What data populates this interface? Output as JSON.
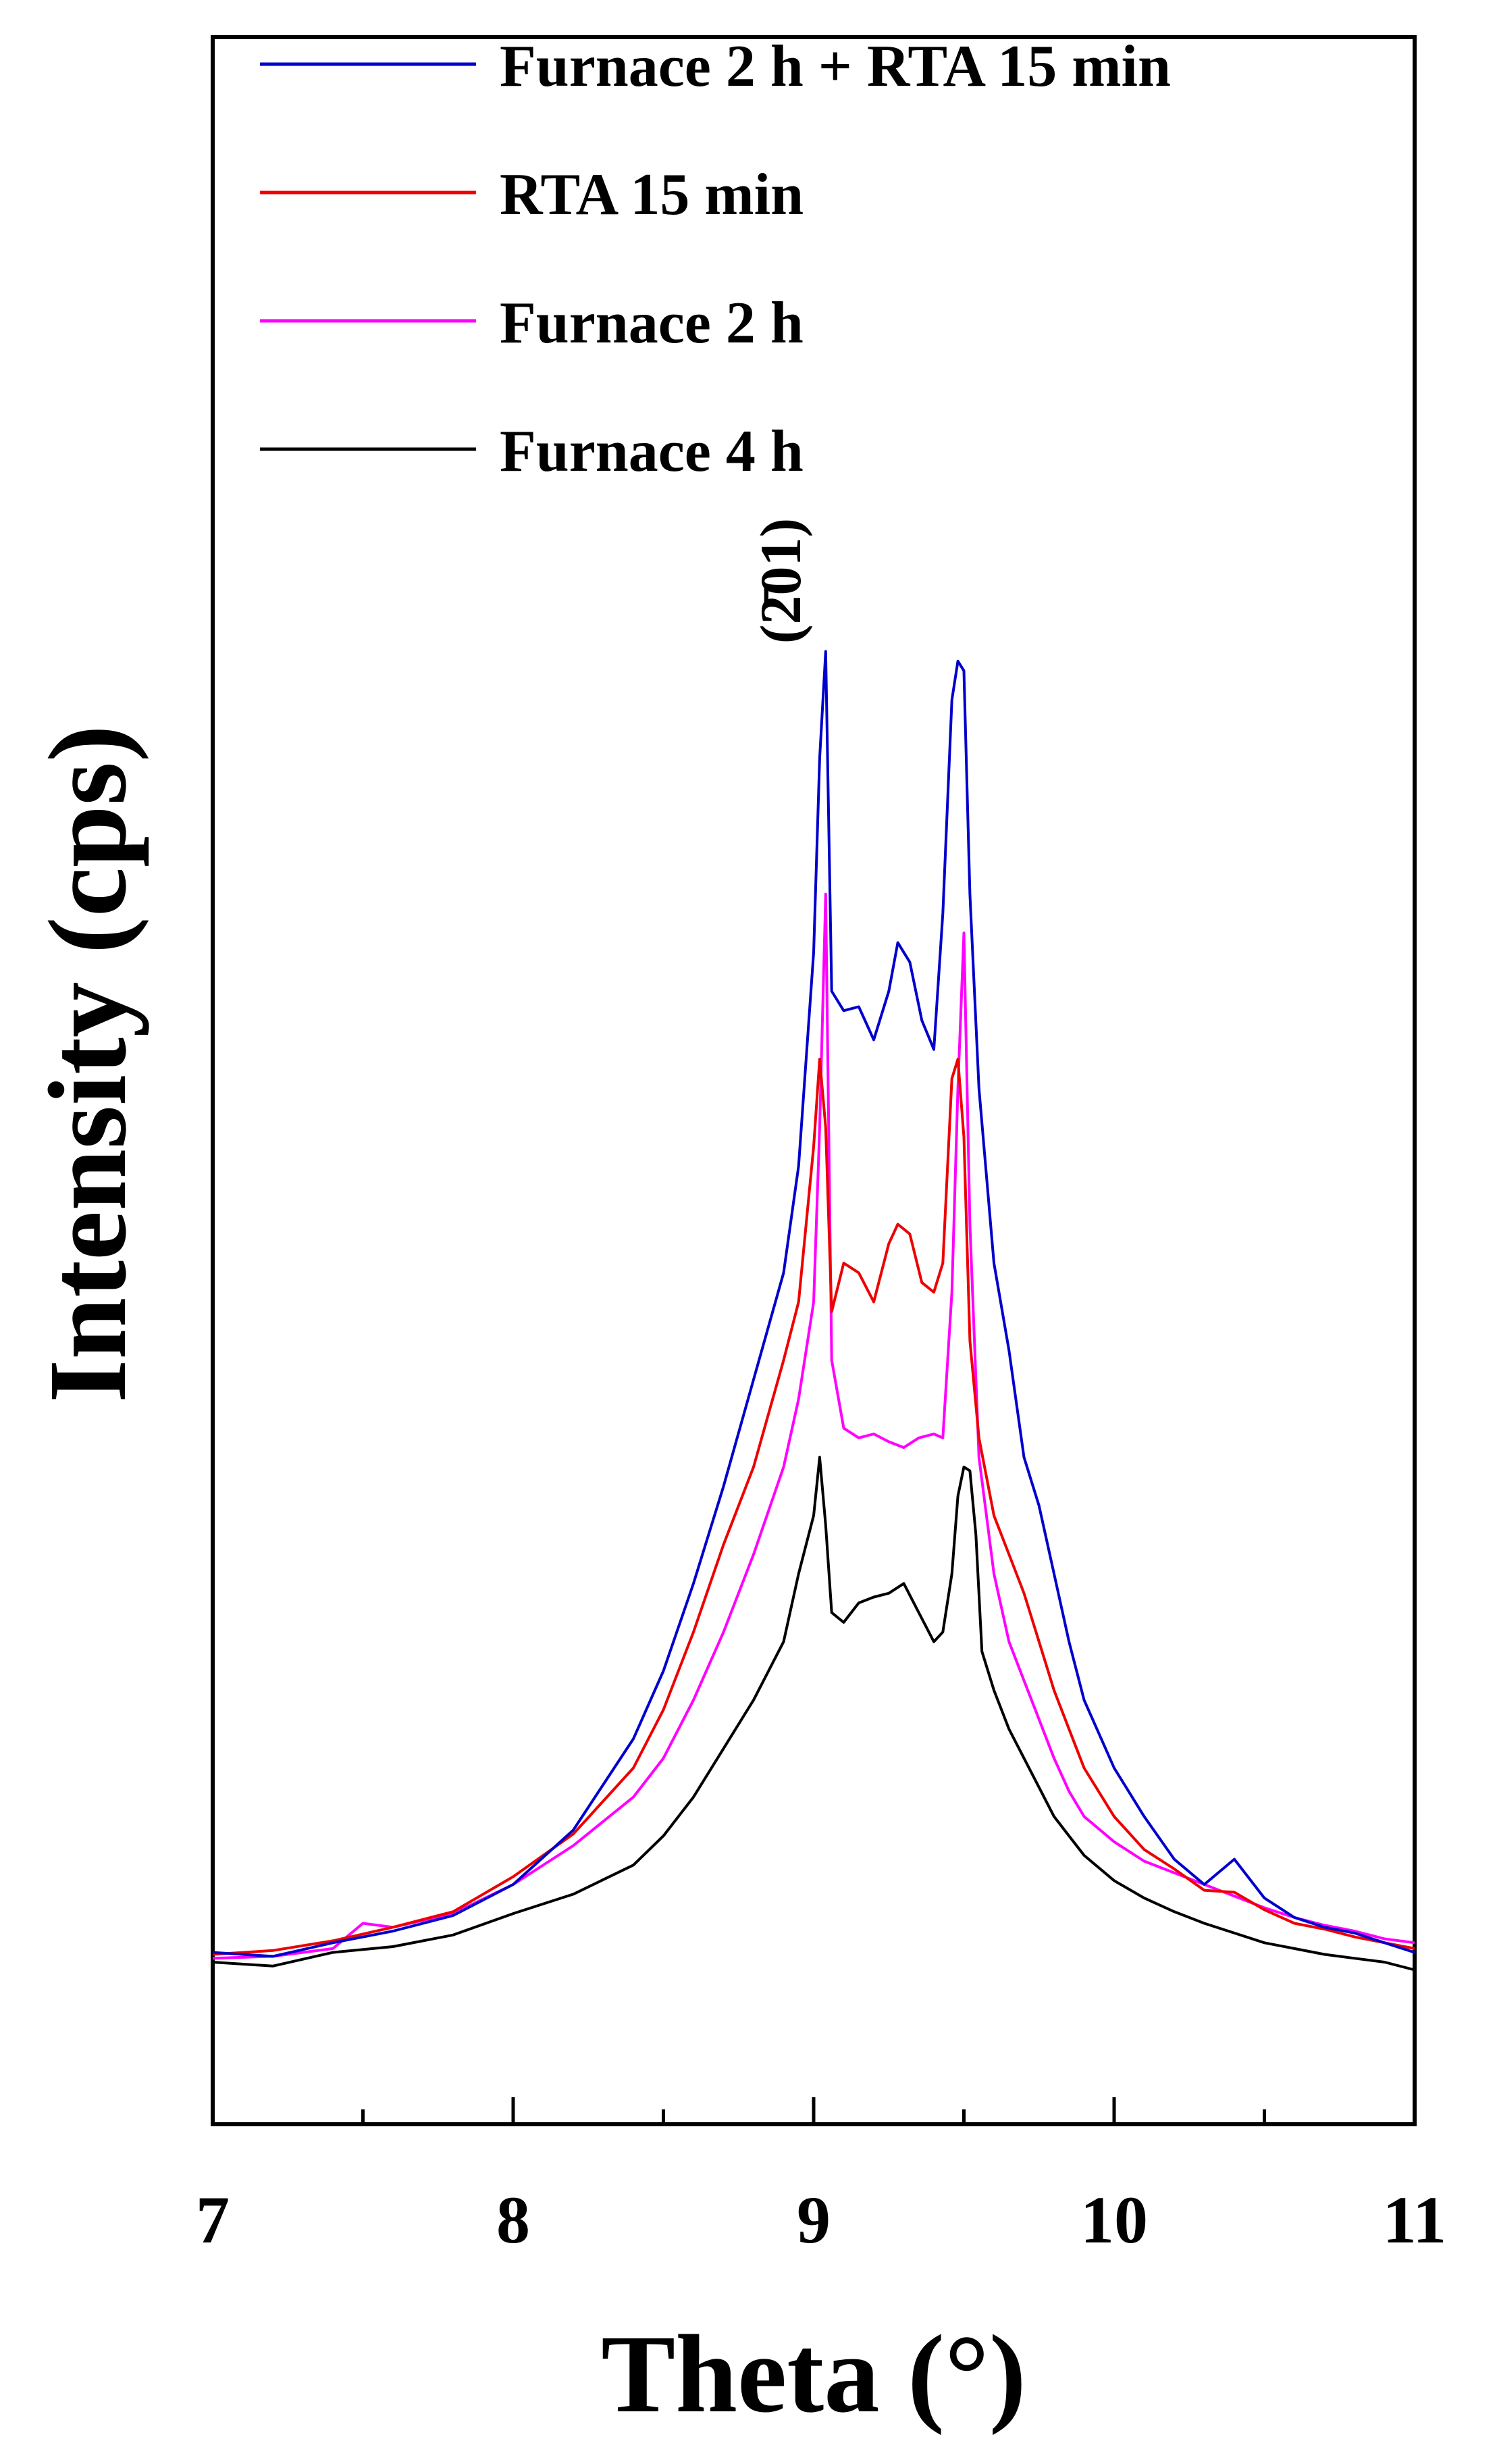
{
  "chart_data": {
    "type": "line",
    "title": "",
    "xlabel": "Theta (°)",
    "ylabel": "Intensity (cps)",
    "xlim": [
      7,
      11
    ],
    "ylim": [
      0,
      100
    ],
    "y_ticks_shown": false,
    "x_ticks": [
      7,
      8,
      9,
      10,
      11
    ],
    "x_tick_labels": [
      "7",
      "8",
      "9",
      "10",
      "11"
    ],
    "legend": {
      "placement": "top-left, inside plot"
    },
    "annotations": [
      {
        "text": "(Ą2̄ 01)",
        "display": "(2̄01)",
        "x": 9.0,
        "y": 72,
        "rotation": -90
      }
    ],
    "series": [
      {
        "name": "Furnace 2 h + RTA 15 min",
        "color": "#0000cc",
        "x": [
          7.0,
          7.2,
          7.4,
          7.6,
          7.8,
          8.0,
          8.2,
          8.4,
          8.5,
          8.6,
          8.7,
          8.8,
          8.9,
          8.95,
          9.0,
          9.02,
          9.04,
          9.06,
          9.1,
          9.15,
          9.2,
          9.25,
          9.28,
          9.32,
          9.36,
          9.4,
          9.43,
          9.46,
          9.48,
          9.5,
          9.52,
          9.55,
          9.6,
          9.65,
          9.7,
          9.75,
          9.8,
          9.85,
          9.9,
          10.0,
          10.1,
          10.2,
          10.3,
          10.4,
          10.5,
          10.6,
          10.7,
          10.8,
          10.9,
          11.0
        ],
        "y": [
          4.5,
          4.3,
          5.0,
          5.6,
          6.4,
          8.0,
          10.8,
          15.5,
          19.0,
          23.5,
          28.5,
          34.0,
          39.5,
          45.0,
          56.0,
          66.0,
          71.5,
          54.0,
          53.0,
          53.2,
          51.5,
          54.0,
          56.5,
          55.5,
          52.5,
          51.0,
          58.0,
          69.0,
          71.0,
          70.5,
          59.0,
          49.0,
          40.0,
          35.5,
          30.0,
          27.5,
          24.0,
          20.5,
          17.5,
          14.0,
          11.5,
          9.3,
          8.0,
          9.3,
          7.3,
          6.3,
          5.8,
          5.5,
          5.0,
          4.5
        ]
      },
      {
        "name": "RTA 15 min",
        "color": "#ee0000",
        "x": [
          7.0,
          7.2,
          7.4,
          7.6,
          7.8,
          8.0,
          8.2,
          8.4,
          8.5,
          8.6,
          8.7,
          8.8,
          8.9,
          8.95,
          9.0,
          9.02,
          9.04,
          9.06,
          9.1,
          9.15,
          9.2,
          9.25,
          9.28,
          9.32,
          9.36,
          9.4,
          9.43,
          9.46,
          9.48,
          9.5,
          9.52,
          9.55,
          9.6,
          9.65,
          9.7,
          9.75,
          9.8,
          9.85,
          9.9,
          10.0,
          10.1,
          10.2,
          10.3,
          10.4,
          10.5,
          10.6,
          10.7,
          10.8,
          10.9,
          11.0
        ],
        "y": [
          4.4,
          4.6,
          5.1,
          5.8,
          6.6,
          8.4,
          10.6,
          14.0,
          17.0,
          21.0,
          25.5,
          29.5,
          35.0,
          38.0,
          46.0,
          50.5,
          47.0,
          37.5,
          40.0,
          39.5,
          38.0,
          41.0,
          42.0,
          41.5,
          39.0,
          38.5,
          40.0,
          49.5,
          50.5,
          46.5,
          36.0,
          31.0,
          27.0,
          25.0,
          23.0,
          20.5,
          18.0,
          16.0,
          14.0,
          11.5,
          9.8,
          8.8,
          7.7,
          7.6,
          6.7,
          6.0,
          5.7,
          5.3,
          5.0,
          4.7
        ]
      },
      {
        "name": "Furnace 2 h",
        "color": "#ff00ff",
        "x": [
          7.0,
          7.2,
          7.4,
          7.5,
          7.6,
          7.8,
          8.0,
          8.2,
          8.4,
          8.5,
          8.6,
          8.7,
          8.8,
          8.9,
          8.95,
          9.0,
          9.02,
          9.04,
          9.06,
          9.1,
          9.15,
          9.2,
          9.25,
          9.3,
          9.35,
          9.4,
          9.43,
          9.46,
          9.48,
          9.5,
          9.52,
          9.55,
          9.6,
          9.65,
          9.7,
          9.75,
          9.8,
          9.85,
          9.9,
          10.0,
          10.1,
          10.2,
          10.3,
          10.4,
          10.5,
          10.6,
          10.7,
          10.8,
          10.9,
          11.0
        ],
        "y": [
          4.2,
          4.3,
          4.7,
          6.0,
          5.8,
          6.5,
          8.0,
          10.0,
          12.5,
          14.5,
          17.5,
          21.0,
          25.0,
          29.5,
          33.0,
          38.0,
          47.0,
          59.0,
          35.0,
          31.5,
          31.0,
          31.2,
          30.8,
          30.5,
          31.0,
          31.2,
          31.0,
          38.5,
          49.0,
          57.0,
          42.0,
          30.0,
          24.0,
          20.5,
          18.5,
          16.5,
          14.5,
          12.8,
          11.5,
          10.2,
          9.2,
          8.6,
          8.0,
          7.4,
          6.8,
          6.3,
          5.9,
          5.6,
          5.2,
          5.0
        ]
      },
      {
        "name": "Furnace 4 h",
        "color": "#000000",
        "x": [
          7.0,
          7.2,
          7.4,
          7.6,
          7.8,
          8.0,
          8.2,
          8.4,
          8.5,
          8.6,
          8.7,
          8.8,
          8.9,
          8.95,
          9.0,
          9.02,
          9.04,
          9.06,
          9.1,
          9.15,
          9.2,
          9.25,
          9.3,
          9.35,
          9.4,
          9.43,
          9.46,
          9.48,
          9.5,
          9.52,
          9.54,
          9.56,
          9.6,
          9.65,
          9.7,
          9.75,
          9.8,
          9.85,
          9.9,
          10.0,
          10.1,
          10.2,
          10.3,
          10.4,
          10.5,
          10.6,
          10.7,
          10.8,
          10.9,
          11.0
        ],
        "y": [
          4.0,
          3.8,
          4.5,
          4.8,
          5.4,
          6.5,
          7.5,
          9.0,
          10.5,
          12.5,
          15.0,
          17.5,
          20.5,
          24.0,
          27.0,
          30.0,
          26.5,
          22.0,
          21.5,
          22.5,
          22.8,
          23.0,
          23.5,
          22.0,
          20.5,
          21.0,
          24.0,
          28.0,
          29.5,
          29.3,
          26.0,
          20.0,
          18.0,
          16.0,
          14.5,
          13.0,
          11.5,
          10.5,
          9.5,
          8.2,
          7.3,
          6.6,
          6.0,
          5.5,
          5.0,
          4.7,
          4.4,
          4.2,
          4.0,
          3.6
        ]
      }
    ]
  }
}
